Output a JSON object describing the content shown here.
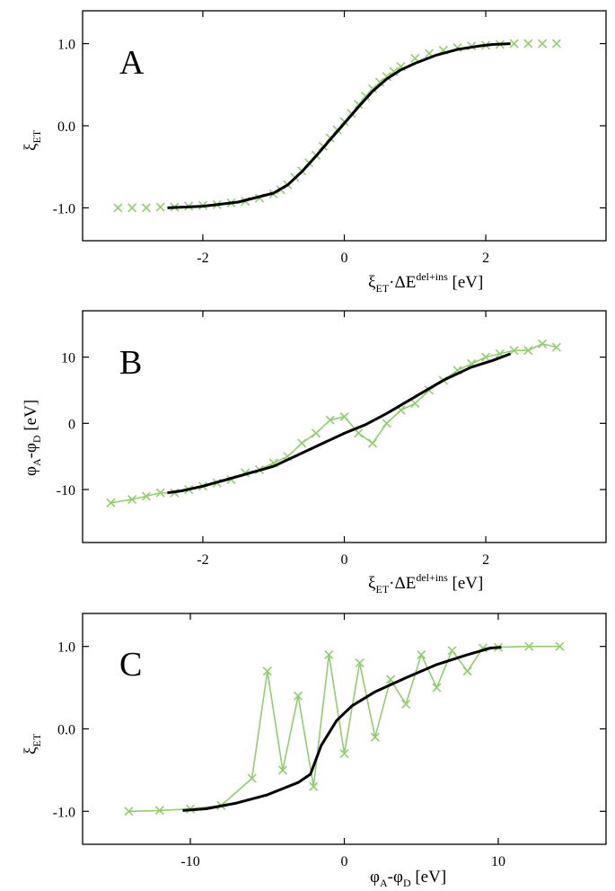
{
  "chart_data": [
    {
      "type": "scatter",
      "panel_label": "A",
      "xlabel": {
        "main": "ξ",
        "sub": "ET",
        "mid": "·ΔE",
        "sup": "del+ins",
        "unit": " [eV]"
      },
      "ylabel": {
        "main": "ξ",
        "sub": "ET",
        "unit": ""
      },
      "xlim": [
        -3.7,
        3.7
      ],
      "ylim": [
        -1.4,
        1.4
      ],
      "xticks": [
        -2,
        0,
        2
      ],
      "xtick_labels": [
        "-2",
        "0",
        "2"
      ],
      "yticks": [
        -1.0,
        0.0,
        1.0
      ],
      "ytick_labels": [
        "-1.0",
        "0.0",
        "1.0"
      ],
      "grid": false,
      "series": [
        {
          "style": "scatter-x",
          "color": "#8fcf6a",
          "points": [
            [
              -3.2,
              -1.0
            ],
            [
              -3.0,
              -1.0
            ],
            [
              -2.8,
              -1.0
            ],
            [
              -2.6,
              -0.99
            ],
            [
              -2.4,
              -0.99
            ],
            [
              -2.2,
              -0.98
            ],
            [
              -2.0,
              -0.97
            ],
            [
              -1.8,
              -0.96
            ],
            [
              -1.6,
              -0.94
            ],
            [
              -1.4,
              -0.92
            ],
            [
              -1.2,
              -0.88
            ],
            [
              -1.0,
              -0.83
            ],
            [
              -0.9,
              -0.78
            ],
            [
              -0.8,
              -0.72
            ],
            [
              -0.7,
              -0.63
            ],
            [
              -0.6,
              -0.55
            ],
            [
              -0.5,
              -0.45
            ],
            [
              -0.4,
              -0.36
            ],
            [
              -0.3,
              -0.25
            ],
            [
              -0.2,
              -0.15
            ],
            [
              -0.1,
              -0.05
            ],
            [
              0.0,
              0.05
            ],
            [
              0.1,
              0.15
            ],
            [
              0.2,
              0.26
            ],
            [
              0.3,
              0.36
            ],
            [
              0.4,
              0.45
            ],
            [
              0.5,
              0.53
            ],
            [
              0.6,
              0.6
            ],
            [
              0.7,
              0.66
            ],
            [
              0.8,
              0.72
            ],
            [
              1.0,
              0.82
            ],
            [
              1.2,
              0.88
            ],
            [
              1.4,
              0.92
            ],
            [
              1.6,
              0.95
            ],
            [
              1.8,
              0.97
            ],
            [
              2.0,
              0.98
            ],
            [
              2.2,
              0.99
            ],
            [
              2.4,
              1.0
            ],
            [
              2.6,
              1.0
            ],
            [
              2.8,
              1.0
            ],
            [
              3.0,
              1.0
            ]
          ]
        },
        {
          "style": "line",
          "color": "#000000",
          "points": [
            [
              -2.5,
              -1.0
            ],
            [
              -2.0,
              -0.98
            ],
            [
              -1.5,
              -0.93
            ],
            [
              -1.0,
              -0.82
            ],
            [
              -0.8,
              -0.72
            ],
            [
              -0.6,
              -0.56
            ],
            [
              -0.4,
              -0.37
            ],
            [
              -0.2,
              -0.17
            ],
            [
              0.0,
              0.03
            ],
            [
              0.2,
              0.23
            ],
            [
              0.4,
              0.42
            ],
            [
              0.6,
              0.57
            ],
            [
              0.8,
              0.68
            ],
            [
              1.0,
              0.76
            ],
            [
              1.3,
              0.86
            ],
            [
              1.6,
              0.93
            ],
            [
              1.9,
              0.97
            ],
            [
              2.1,
              0.99
            ],
            [
              2.35,
              1.0
            ]
          ]
        }
      ]
    },
    {
      "type": "scatter",
      "panel_label": "B",
      "xlabel": {
        "main": "ξ",
        "sub": "ET",
        "mid": "·ΔE",
        "sup": "del+ins",
        "unit": " [eV]"
      },
      "ylabel": {
        "main": "φ",
        "sub": "A",
        "mid": "-φ",
        "sub2": "D",
        "unit": " [eV]"
      },
      "xlim": [
        -3.7,
        3.7
      ],
      "ylim": [
        -18,
        17
      ],
      "xticks": [
        -2,
        0,
        2
      ],
      "xtick_labels": [
        "-2",
        "0",
        "2"
      ],
      "yticks": [
        -10,
        0,
        10
      ],
      "ytick_labels": [
        "-10",
        "0",
        "10"
      ],
      "grid": false,
      "series": [
        {
          "style": "line-x",
          "color": "#8fcf6a",
          "points": [
            [
              -3.3,
              -12.0
            ],
            [
              -3.0,
              -11.5
            ],
            [
              -2.8,
              -11.0
            ],
            [
              -2.6,
              -10.5
            ],
            [
              -2.4,
              -10.5
            ],
            [
              -2.2,
              -10.0
            ],
            [
              -2.0,
              -9.5
            ],
            [
              -1.8,
              -9.0
            ],
            [
              -1.6,
              -8.5
            ],
            [
              -1.4,
              -7.5
            ],
            [
              -1.2,
              -7.0
            ],
            [
              -1.0,
              -6.0
            ],
            [
              -0.8,
              -5.0
            ],
            [
              -0.6,
              -3.0
            ],
            [
              -0.4,
              -1.5
            ],
            [
              -0.2,
              0.5
            ],
            [
              0.0,
              1.0
            ],
            [
              0.2,
              -1.5
            ],
            [
              0.4,
              -3.0
            ],
            [
              0.6,
              0.0
            ],
            [
              0.8,
              2.0
            ],
            [
              1.0,
              3.0
            ],
            [
              1.2,
              5.0
            ],
            [
              1.4,
              6.5
            ],
            [
              1.6,
              8.0
            ],
            [
              1.8,
              9.0
            ],
            [
              2.0,
              10.0
            ],
            [
              2.2,
              10.5
            ],
            [
              2.4,
              11.0
            ],
            [
              2.6,
              11.0
            ],
            [
              2.8,
              12.0
            ],
            [
              3.0,
              11.5
            ]
          ]
        },
        {
          "style": "line",
          "color": "#000000",
          "points": [
            [
              -2.5,
              -10.5
            ],
            [
              -2.3,
              -10.2
            ],
            [
              -2.0,
              -9.5
            ],
            [
              -1.5,
              -8.0
            ],
            [
              -1.0,
              -6.5
            ],
            [
              -0.6,
              -4.5
            ],
            [
              -0.3,
              -3.0
            ],
            [
              0.0,
              -1.5
            ],
            [
              0.3,
              -0.2
            ],
            [
              0.6,
              1.5
            ],
            [
              1.0,
              4.0
            ],
            [
              1.4,
              6.5
            ],
            [
              1.8,
              8.5
            ],
            [
              2.1,
              9.5
            ],
            [
              2.35,
              10.5
            ]
          ]
        }
      ]
    },
    {
      "type": "scatter",
      "panel_label": "C",
      "xlabel": {
        "main": "φ",
        "sub": "A",
        "mid": "-φ",
        "sub2": "D",
        "unit": " [eV]"
      },
      "ylabel": {
        "main": "ξ",
        "sub": "ET",
        "unit": ""
      },
      "xlim": [
        -17,
        17
      ],
      "ylim": [
        -1.4,
        1.4
      ],
      "xticks": [
        -10,
        0,
        10
      ],
      "xtick_labels": [
        "-10",
        "0",
        "10"
      ],
      "yticks": [
        -1.0,
        0.0,
        1.0
      ],
      "ytick_labels": [
        "-1.0",
        "0.0",
        "1.0"
      ],
      "grid": false,
      "series": [
        {
          "style": "line-x",
          "color": "#8fcf6a",
          "points": [
            [
              -14.0,
              -1.0
            ],
            [
              -12.0,
              -0.99
            ],
            [
              -10.0,
              -0.97
            ],
            [
              -8.0,
              -0.93
            ],
            [
              -6.0,
              -0.6
            ],
            [
              -5.0,
              0.7
            ],
            [
              -4.0,
              -0.5
            ],
            [
              -3.0,
              0.4
            ],
            [
              -2.0,
              -0.7
            ],
            [
              -1.0,
              0.9
            ],
            [
              0.0,
              -0.3
            ],
            [
              1.0,
              0.8
            ],
            [
              2.0,
              -0.1
            ],
            [
              3.0,
              0.6
            ],
            [
              4.0,
              0.3
            ],
            [
              5.0,
              0.9
            ],
            [
              6.0,
              0.5
            ],
            [
              7.0,
              0.95
            ],
            [
              8.0,
              0.7
            ],
            [
              9.0,
              0.98
            ],
            [
              10.0,
              0.99
            ],
            [
              12.0,
              1.0
            ],
            [
              14.0,
              1.0
            ]
          ]
        },
        {
          "style": "line",
          "color": "#000000",
          "points": [
            [
              -10.5,
              -0.99
            ],
            [
              -9.0,
              -0.97
            ],
            [
              -7.0,
              -0.9
            ],
            [
              -5.0,
              -0.8
            ],
            [
              -3.0,
              -0.65
            ],
            [
              -2.2,
              -0.55
            ],
            [
              -1.5,
              -0.2
            ],
            [
              -0.5,
              0.1
            ],
            [
              0.5,
              0.28
            ],
            [
              2.0,
              0.45
            ],
            [
              4.0,
              0.62
            ],
            [
              6.0,
              0.78
            ],
            [
              8.0,
              0.9
            ],
            [
              9.5,
              0.98
            ],
            [
              10.2,
              0.99
            ]
          ]
        }
      ]
    }
  ]
}
